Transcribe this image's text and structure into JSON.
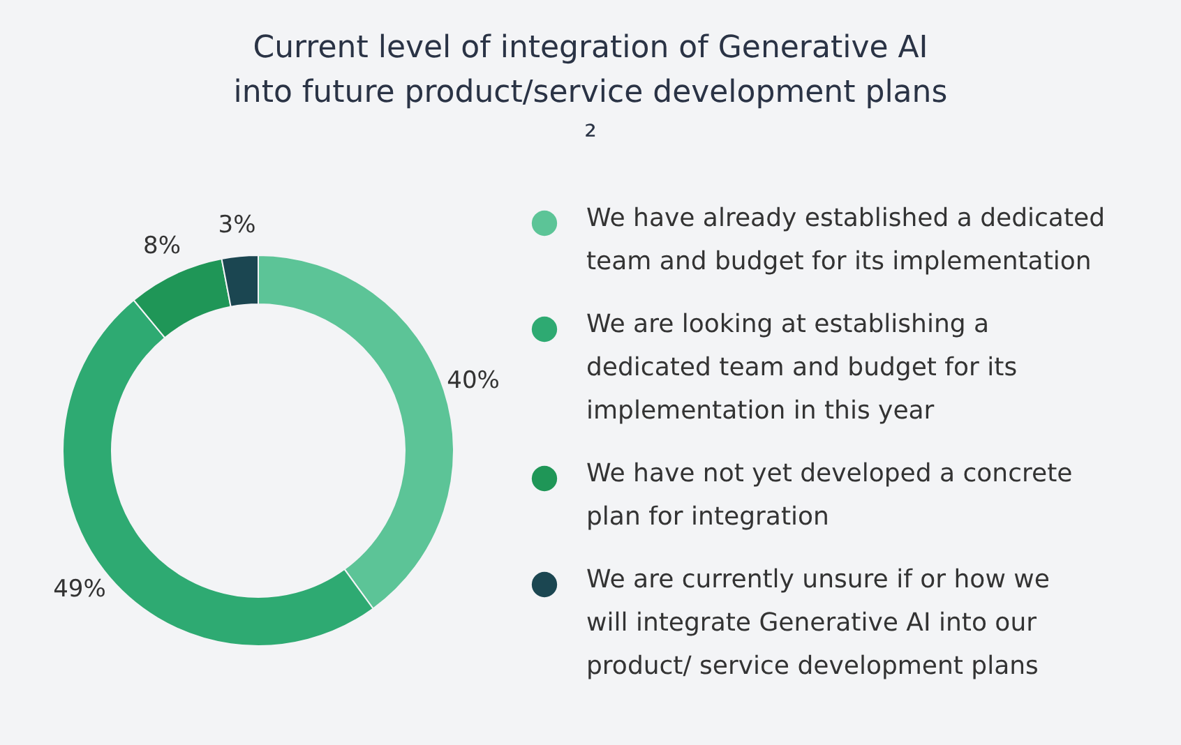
{
  "chart_data": {
    "type": "donut",
    "title": "Current level of integration of Generative AI into future product/service development plans ²",
    "categories": [
      "We have already established a dedicated team and budget for its implementation",
      "We are looking at establishing a dedicated team and budget for its implementation in this year",
      "We have not yet developed a concrete plan for integration",
      "We are currently unsure if or how we will integrate Generative AI into our product/ service development plans"
    ],
    "values": [
      40,
      49,
      8,
      3
    ],
    "colors": [
      "#5cc497",
      "#2eaa72",
      "#1f9657",
      "#1b4651"
    ],
    "value_labels": [
      "40%",
      "49%",
      "8%",
      "3%"
    ],
    "legend": "right"
  }
}
